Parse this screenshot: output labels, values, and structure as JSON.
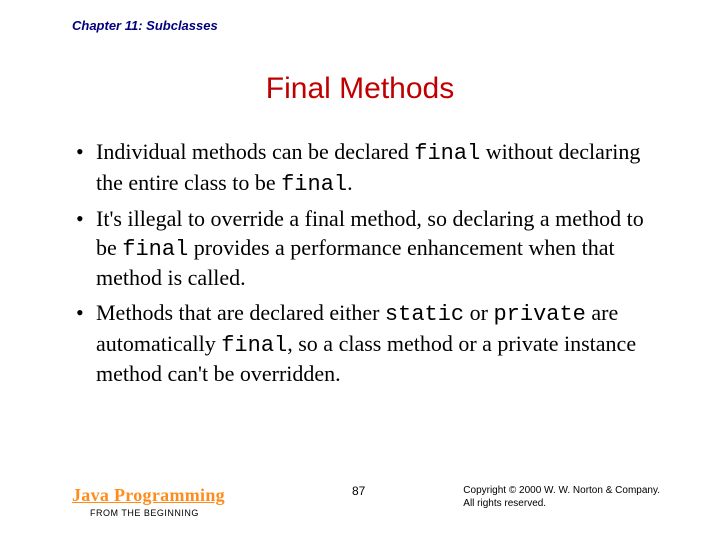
{
  "header": {
    "chapter": "Chapter 11: Subclasses"
  },
  "title": "Final Methods",
  "bullets": [
    {
      "parts": [
        {
          "t": "Individual methods can be declared ",
          "code": false
        },
        {
          "t": "final",
          "code": true
        },
        {
          "t": " without declaring the entire class to be ",
          "code": false
        },
        {
          "t": "final",
          "code": true
        },
        {
          "t": ".",
          "code": false
        }
      ]
    },
    {
      "parts": [
        {
          "t": "It's illegal to override a final method, so declaring a method to be ",
          "code": false
        },
        {
          "t": "final",
          "code": true
        },
        {
          "t": " provides a performance enhancement when that method is called.",
          "code": false
        }
      ]
    },
    {
      "parts": [
        {
          "t": "Methods that are declared either ",
          "code": false
        },
        {
          "t": "static",
          "code": true
        },
        {
          "t": " or ",
          "code": false
        },
        {
          "t": "private",
          "code": true
        },
        {
          "t": " are automatically ",
          "code": false
        },
        {
          "t": "final",
          "code": true
        },
        {
          "t": ", so a class method or a private instance method can't be overridden.",
          "code": false
        }
      ]
    }
  ],
  "footer": {
    "brand_title": "Java Programming",
    "brand_sub": "FROM THE BEGINNING",
    "page": "87",
    "copyright_line1": "Copyright © 2000 W. W. Norton & Company.",
    "copyright_line2": "All rights reserved."
  },
  "colors": {
    "header_text": "#000080",
    "title_text": "#c00000",
    "body_text": "#000000",
    "brand_text": "#ff8c1a",
    "background": "#ffffff"
  },
  "typography": {
    "header_fontsize": 13,
    "title_fontsize": 30,
    "body_fontsize": 22,
    "brand_fontsize": 18,
    "footer_small_fontsize": 10,
    "pagenum_fontsize": 12
  }
}
